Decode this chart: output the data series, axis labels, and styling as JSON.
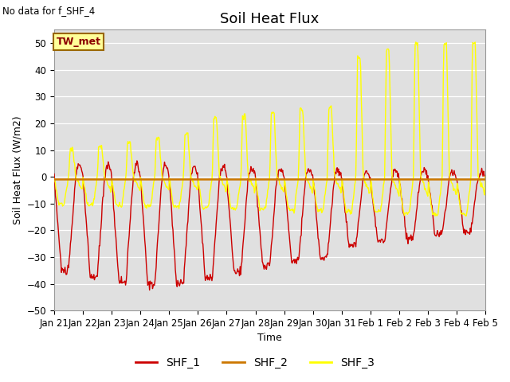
{
  "title": "Soil Heat Flux",
  "ylabel": "Soil Heat Flux (W/m2)",
  "xlabel": "Time",
  "ylim": [
    -50,
    55
  ],
  "yticks": [
    -50,
    -40,
    -30,
    -20,
    -10,
    0,
    10,
    20,
    30,
    40,
    50
  ],
  "bg_color": "#e0e0e0",
  "no_data_text": "No data for f_SHF_4",
  "tw_met_label": "TW_met",
  "legend_entries": [
    "SHF_1",
    "SHF_2",
    "SHF_3"
  ],
  "line_colors": [
    "#cc0000",
    "#cc7700",
    "#ffff00"
  ],
  "title_fontsize": 13,
  "axis_label_fontsize": 9,
  "tick_fontsize": 8.5
}
